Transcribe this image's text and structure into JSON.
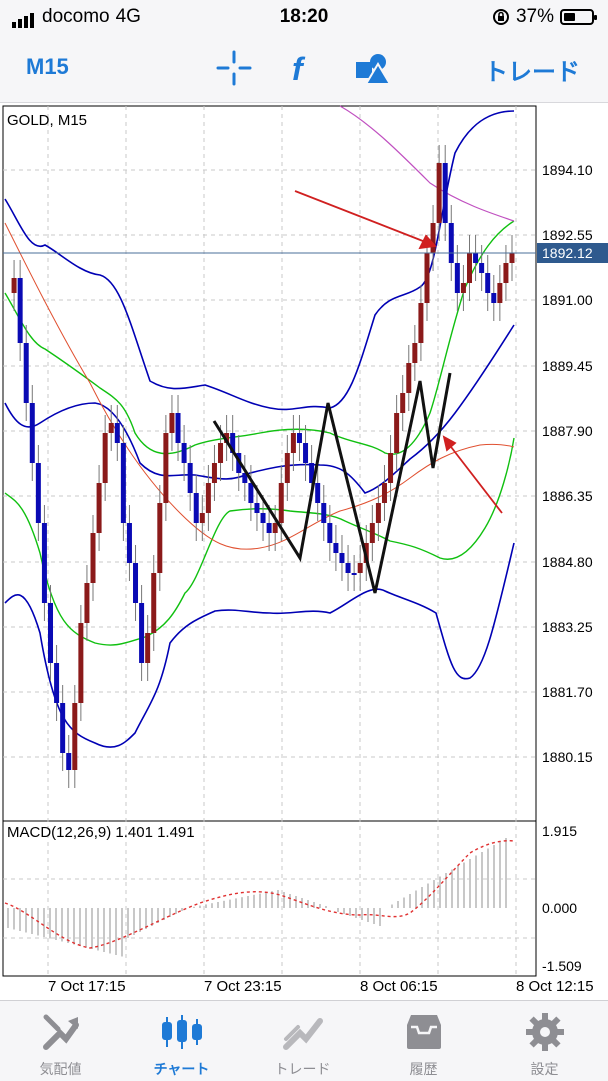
{
  "status_bar": {
    "carrier": "docomo",
    "network": "4G",
    "time": "18:20",
    "battery": "37%"
  },
  "toolbar": {
    "timeframe": "M15",
    "trade_label": "トレード",
    "icons": [
      "crosshair-icon",
      "function-icon",
      "objects-icon"
    ]
  },
  "chart": {
    "symbol_label": "GOLD, M15",
    "current_price": "1892.12",
    "price_ticks": [
      "1894.10",
      "1892.55",
      "1891.00",
      "1889.45",
      "1887.90",
      "1886.35",
      "1884.80",
      "1883.25",
      "1881.70",
      "1880.15"
    ],
    "time_ticks": [
      "7 Oct 17:15",
      "7 Oct 23:15",
      "8 Oct 06:15",
      "8 Oct 12:15"
    ],
    "macd_label": "MACD(12,26,9) 1.401 1.491",
    "macd_ticks": [
      "1.915",
      "0.000",
      "-1.509"
    ],
    "colors": {
      "up_candle": "#8b1a1a",
      "down_candle": "#0a0ab4",
      "bollinger_outer": "#0000b4",
      "bollinger_inner": "#10c010",
      "ma_slow": "#c050c0",
      "ma_red": "#e05030",
      "annotation": "#d02020",
      "price_line": "#4a6f9a"
    }
  },
  "chart_data": {
    "type": "candlestick",
    "x": [
      "7 Oct 17:15",
      "7 Oct 23:15",
      "8 Oct 06:15",
      "8 Oct 12:15"
    ],
    "y_ticks": [
      1894.1,
      1892.55,
      1891.0,
      1889.45,
      1887.9,
      1886.35,
      1884.8,
      1883.25,
      1881.7,
      1880.15
    ],
    "current_price": 1892.12,
    "macd": {
      "label": "MACD(12,26,9)",
      "value": 1.401,
      "signal": 1.491,
      "range": [
        -1.509,
        1.915
      ]
    }
  },
  "bottom_nav": {
    "items": [
      {
        "label": "気配値",
        "icon": "quotes-icon",
        "active": false
      },
      {
        "label": "チャート",
        "icon": "chart-icon",
        "active": true
      },
      {
        "label": "トレード",
        "icon": "trade-icon",
        "active": false
      },
      {
        "label": "履歴",
        "icon": "history-icon",
        "active": false
      },
      {
        "label": "設定",
        "icon": "settings-icon",
        "active": false
      }
    ]
  }
}
